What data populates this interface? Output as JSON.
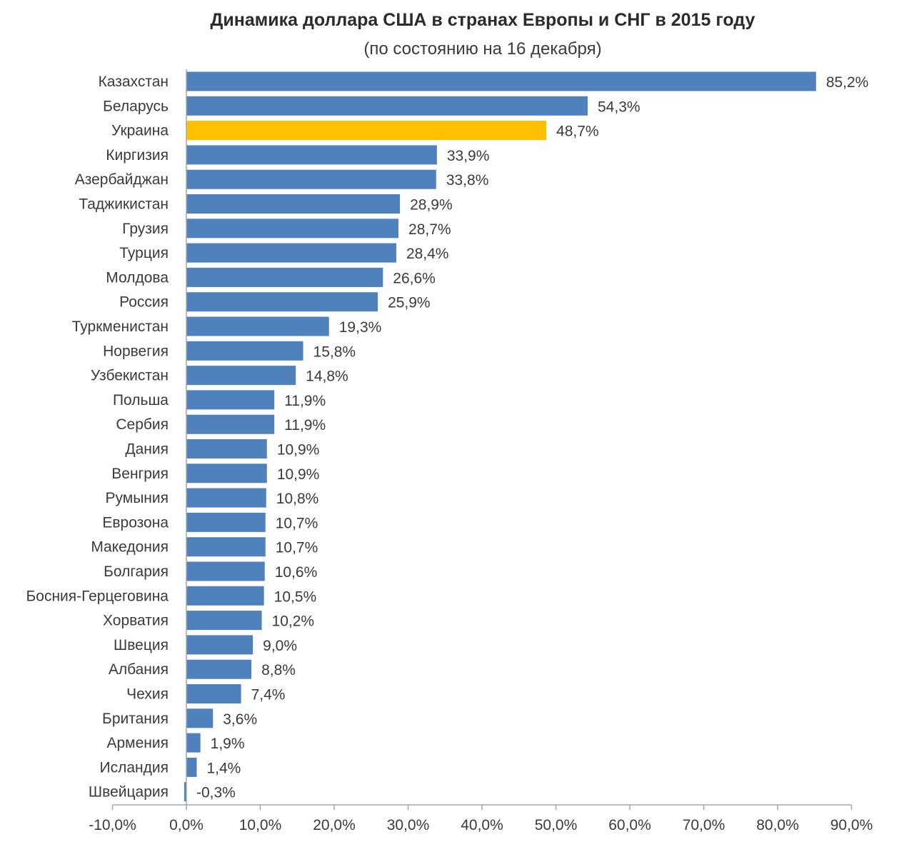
{
  "chart_data": {
    "type": "bar",
    "orientation": "horizontal",
    "title": "Динамика доллара США в странах Европы и СНГ в 2015 году",
    "subtitle": "(по состоянию на 16 декабря)",
    "categories": [
      "Казахстан",
      "Беларусь",
      "Украина",
      "Киргизия",
      "Азербайджан",
      "Таджикистан",
      "Грузия",
      "Турция",
      "Молдова",
      "Россия",
      "Туркменистан",
      "Норвегия",
      "Узбекистан",
      "Польша",
      "Сербия",
      "Дания",
      "Венгрия",
      "Румыния",
      "Еврозона",
      "Македония",
      "Болгария",
      "Босния-Герцеговина",
      "Хорватия",
      "Швеция",
      "Албания",
      "Чехия",
      "Британия",
      "Армения",
      "Исландия",
      "Швейцария"
    ],
    "values": [
      85.2,
      54.3,
      48.7,
      33.9,
      33.8,
      28.9,
      28.7,
      28.4,
      26.6,
      25.9,
      19.3,
      15.8,
      14.8,
      11.9,
      11.9,
      10.9,
      10.9,
      10.8,
      10.7,
      10.7,
      10.6,
      10.5,
      10.2,
      9.0,
      8.8,
      7.4,
      3.6,
      1.9,
      1.4,
      -0.3
    ],
    "value_labels": [
      "85,2%",
      "54,3%",
      "48,7%",
      "33,9%",
      "33,8%",
      "28,9%",
      "28,7%",
      "28,4%",
      "26,6%",
      "25,9%",
      "19,3%",
      "15,8%",
      "14,8%",
      "11,9%",
      "11,9%",
      "10,9%",
      "10,9%",
      "10,8%",
      "10,7%",
      "10,7%",
      "10,6%",
      "10,5%",
      "10,2%",
      "9,0%",
      "8,8%",
      "7,4%",
      "3,6%",
      "1,9%",
      "1,4%",
      "-0,3%"
    ],
    "xlim": [
      -10,
      90
    ],
    "xticks": [
      -10,
      0,
      10,
      20,
      30,
      40,
      50,
      60,
      70,
      80,
      90
    ],
    "xtick_labels": [
      "-10,0%",
      "0,0%",
      "10,0%",
      "20,0%",
      "30,0%",
      "40,0%",
      "50,0%",
      "60,0%",
      "70,0%",
      "80,0%",
      "90,0%"
    ],
    "grid": false,
    "legend": "none",
    "colors": {
      "default": "#4f81bd",
      "highlight": "#ffc000",
      "axis": "#a6a6a6"
    },
    "highlight_category": "Украина"
  }
}
